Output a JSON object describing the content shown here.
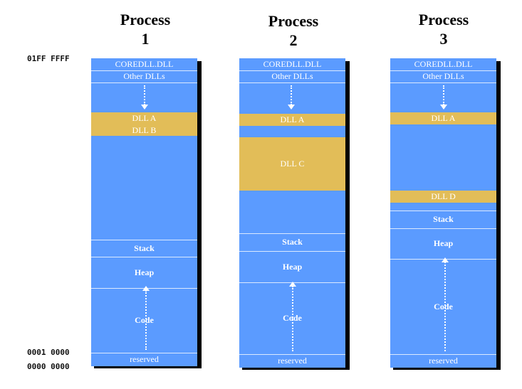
{
  "processes": [
    {
      "title_word": "Process",
      "title_num": "1",
      "segments": {
        "coredll": "COREDLL.DLL",
        "other": "Other DLLs",
        "dll_a": "DLL A",
        "dll_b": "DLL B",
        "stack": "Stack",
        "heap": "Heap",
        "code": "Code",
        "reserved": "reserved"
      }
    },
    {
      "title_word": "Process",
      "title_num": "2",
      "segments": {
        "coredll": "COREDLL.DLL",
        "other": "Other DLLs",
        "dll_a": "DLL A",
        "dll_c": "DLL C",
        "stack": "Stack",
        "heap": "Heap",
        "code": "Code",
        "reserved": "reserved"
      }
    },
    {
      "title_word": "Process",
      "title_num": "3",
      "segments": {
        "coredll": "COREDLL.DLL",
        "other": "Other DLLs",
        "dll_a": "DLL A",
        "dll_d": "DLL D",
        "stack": "Stack",
        "heap": "Heap",
        "code": "Code",
        "reserved": "reserved"
      }
    }
  ],
  "addresses": {
    "top": "01FF FFFF",
    "code_start": "0001 0000",
    "bottom": "0000 0000"
  },
  "colors": {
    "memory_blue": "#5b9bff",
    "dll_yellow": "#e2bd58",
    "shadow": "#000000"
  }
}
